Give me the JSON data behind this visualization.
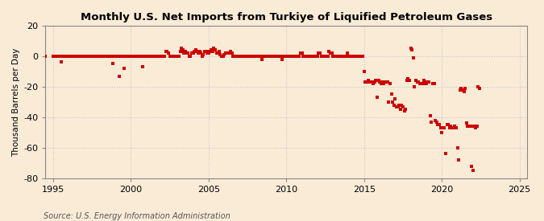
{
  "title": "Monthly U.S. Net Imports from Turkiye of Liquified Petroleum Gases",
  "ylabel": "Thousand Barrels per Day",
  "source": "Source: U.S. Energy Information Administration",
  "ylim": [
    -80,
    20
  ],
  "yticks": [
    -80,
    -60,
    -40,
    -20,
    0,
    20
  ],
  "xlim": [
    1994.5,
    2025.5
  ],
  "xticks": [
    1995,
    2000,
    2005,
    2010,
    2015,
    2020,
    2025
  ],
  "bg_color": "#faebd7",
  "plot_bg_color": "#faebd7",
  "marker_color": "#cc0000",
  "marker_size": 9,
  "grid_color": "#c8c8c8",
  "spine_color": "#888888",
  "data_points": [
    [
      1995.5,
      -4
    ],
    [
      1998.83,
      -5
    ],
    [
      1999.25,
      -13
    ],
    [
      1999.58,
      -8
    ],
    [
      2000.75,
      -7
    ],
    [
      2002.25,
      3
    ],
    [
      2002.33,
      3
    ],
    [
      2002.42,
      2
    ],
    [
      2003.17,
      3
    ],
    [
      2003.25,
      5
    ],
    [
      2003.33,
      4
    ],
    [
      2003.42,
      2
    ],
    [
      2003.5,
      3
    ],
    [
      2003.58,
      2
    ],
    [
      2003.67,
      2
    ],
    [
      2003.92,
      2
    ],
    [
      2004.0,
      2
    ],
    [
      2004.08,
      3
    ],
    [
      2004.17,
      4
    ],
    [
      2004.25,
      3
    ],
    [
      2004.33,
      2
    ],
    [
      2004.42,
      3
    ],
    [
      2004.5,
      2
    ],
    [
      2004.67,
      1
    ],
    [
      2004.75,
      3
    ],
    [
      2004.83,
      3
    ],
    [
      2004.92,
      2
    ],
    [
      2005.0,
      2
    ],
    [
      2005.08,
      3
    ],
    [
      2005.17,
      4
    ],
    [
      2005.25,
      3
    ],
    [
      2005.33,
      5
    ],
    [
      2005.42,
      4
    ],
    [
      2005.5,
      2
    ],
    [
      2005.58,
      2
    ],
    [
      2005.67,
      3
    ],
    [
      2005.75,
      1
    ],
    [
      2006.0,
      1
    ],
    [
      2006.08,
      2
    ],
    [
      2006.17,
      2
    ],
    [
      2006.25,
      2
    ],
    [
      2006.33,
      2
    ],
    [
      2006.42,
      3
    ],
    [
      2006.5,
      2
    ],
    [
      2008.42,
      -2
    ],
    [
      2009.75,
      -2
    ],
    [
      2010.92,
      2
    ],
    [
      2011.0,
      2
    ],
    [
      2012.08,
      2
    ],
    [
      2012.17,
      2
    ],
    [
      2012.75,
      3
    ],
    [
      2012.83,
      2
    ],
    [
      2012.92,
      2
    ],
    [
      2013.92,
      2
    ],
    [
      2015.0,
      -10
    ],
    [
      2015.08,
      -17
    ],
    [
      2015.17,
      -17
    ],
    [
      2015.25,
      -16
    ],
    [
      2015.33,
      -17
    ],
    [
      2015.42,
      -17
    ],
    [
      2015.5,
      -17
    ],
    [
      2015.58,
      -18
    ],
    [
      2015.67,
      -17
    ],
    [
      2015.75,
      -16
    ],
    [
      2015.83,
      -27
    ],
    [
      2015.92,
      -16
    ],
    [
      2016.0,
      -17
    ],
    [
      2016.08,
      -18
    ],
    [
      2016.17,
      -17
    ],
    [
      2016.25,
      -18
    ],
    [
      2016.33,
      -17
    ],
    [
      2016.42,
      -17
    ],
    [
      2016.5,
      -17
    ],
    [
      2016.58,
      -30
    ],
    [
      2016.67,
      -18
    ],
    [
      2016.75,
      -25
    ],
    [
      2016.83,
      -30
    ],
    [
      2016.92,
      -32
    ],
    [
      2017.0,
      -28
    ],
    [
      2017.08,
      -33
    ],
    [
      2017.17,
      -33
    ],
    [
      2017.25,
      -32
    ],
    [
      2017.33,
      -35
    ],
    [
      2017.42,
      -32
    ],
    [
      2017.5,
      -33
    ],
    [
      2017.58,
      -36
    ],
    [
      2017.67,
      -35
    ],
    [
      2017.75,
      -16
    ],
    [
      2017.83,
      -15
    ],
    [
      2017.92,
      -16
    ],
    [
      2018.0,
      5
    ],
    [
      2018.08,
      4
    ],
    [
      2018.17,
      -1
    ],
    [
      2018.25,
      -20
    ],
    [
      2018.33,
      -16
    ],
    [
      2018.42,
      -17
    ],
    [
      2018.5,
      -17
    ],
    [
      2018.58,
      -18
    ],
    [
      2018.67,
      -18
    ],
    [
      2018.75,
      -18
    ],
    [
      2018.83,
      -16
    ],
    [
      2018.92,
      -18
    ],
    [
      2019.0,
      -18
    ],
    [
      2019.08,
      -17
    ],
    [
      2019.17,
      -17
    ],
    [
      2019.25,
      -39
    ],
    [
      2019.33,
      -43
    ],
    [
      2019.42,
      -18
    ],
    [
      2019.5,
      -18
    ],
    [
      2019.58,
      -42
    ],
    [
      2019.67,
      -43
    ],
    [
      2019.75,
      -45
    ],
    [
      2019.83,
      -45
    ],
    [
      2019.92,
      -47
    ],
    [
      2020.0,
      -50
    ],
    [
      2020.08,
      -47
    ],
    [
      2020.17,
      -47
    ],
    [
      2020.25,
      -64
    ],
    [
      2020.33,
      -45
    ],
    [
      2020.42,
      -45
    ],
    [
      2020.5,
      -47
    ],
    [
      2020.58,
      -46
    ],
    [
      2020.67,
      -47
    ],
    [
      2020.75,
      -47
    ],
    [
      2020.83,
      -46
    ],
    [
      2020.92,
      -47
    ],
    [
      2021.0,
      -60
    ],
    [
      2021.08,
      -68
    ],
    [
      2021.17,
      -22
    ],
    [
      2021.25,
      -21
    ],
    [
      2021.33,
      -22
    ],
    [
      2021.42,
      -23
    ],
    [
      2021.5,
      -21
    ],
    [
      2021.58,
      -44
    ],
    [
      2021.67,
      -46
    ],
    [
      2021.75,
      -46
    ],
    [
      2021.83,
      -46
    ],
    [
      2021.92,
      -72
    ],
    [
      2022.0,
      -75
    ],
    [
      2022.08,
      -46
    ],
    [
      2022.17,
      -47
    ],
    [
      2022.25,
      -46
    ],
    [
      2022.33,
      -20
    ],
    [
      2022.42,
      -21
    ]
  ],
  "zero_line_points": [
    [
      1994.5,
      0
    ],
    [
      1995.0,
      0
    ],
    [
      1995.08,
      0
    ],
    [
      1995.17,
      0
    ],
    [
      1995.25,
      0
    ],
    [
      1995.33,
      0
    ],
    [
      1995.42,
      0
    ],
    [
      1995.58,
      0
    ],
    [
      1995.75,
      0
    ],
    [
      1995.83,
      0
    ],
    [
      1995.92,
      0
    ],
    [
      1996.0,
      0
    ],
    [
      1996.08,
      0
    ],
    [
      1996.17,
      0
    ],
    [
      1996.25,
      0
    ],
    [
      1996.33,
      0
    ],
    [
      1996.42,
      0
    ],
    [
      1996.5,
      0
    ],
    [
      1996.58,
      0
    ],
    [
      1996.67,
      0
    ],
    [
      1996.75,
      0
    ],
    [
      1996.83,
      0
    ],
    [
      1996.92,
      0
    ],
    [
      1997.0,
      0
    ],
    [
      1997.08,
      0
    ],
    [
      1997.17,
      0
    ],
    [
      1997.25,
      0
    ],
    [
      1997.33,
      0
    ],
    [
      1997.42,
      0
    ],
    [
      1997.5,
      0
    ],
    [
      1997.58,
      0
    ],
    [
      1997.67,
      0
    ],
    [
      1997.75,
      0
    ],
    [
      1997.83,
      0
    ],
    [
      1997.92,
      0
    ],
    [
      1998.0,
      0
    ],
    [
      1998.08,
      0
    ],
    [
      1998.17,
      0
    ],
    [
      1998.25,
      0
    ],
    [
      1998.33,
      0
    ],
    [
      1998.42,
      0
    ],
    [
      1998.5,
      0
    ],
    [
      1998.58,
      0
    ],
    [
      1998.67,
      0
    ],
    [
      1998.75,
      0
    ],
    [
      1998.92,
      0
    ],
    [
      1999.0,
      0
    ],
    [
      1999.08,
      0
    ],
    [
      1999.17,
      0
    ],
    [
      1999.33,
      0
    ],
    [
      1999.42,
      0
    ],
    [
      1999.5,
      0
    ],
    [
      1999.67,
      0
    ],
    [
      1999.75,
      0
    ],
    [
      1999.83,
      0
    ],
    [
      1999.92,
      0
    ],
    [
      2000.0,
      0
    ],
    [
      2000.08,
      0
    ],
    [
      2000.17,
      0
    ],
    [
      2000.25,
      0
    ],
    [
      2000.33,
      0
    ],
    [
      2000.42,
      0
    ],
    [
      2000.5,
      0
    ],
    [
      2000.58,
      0
    ],
    [
      2000.67,
      0
    ],
    [
      2000.83,
      0
    ],
    [
      2000.92,
      0
    ],
    [
      2001.0,
      0
    ],
    [
      2001.08,
      0
    ],
    [
      2001.17,
      0
    ],
    [
      2001.25,
      0
    ],
    [
      2001.33,
      0
    ],
    [
      2001.42,
      0
    ],
    [
      2001.5,
      0
    ],
    [
      2001.58,
      0
    ],
    [
      2001.67,
      0
    ],
    [
      2001.75,
      0
    ],
    [
      2001.83,
      0
    ],
    [
      2001.92,
      0
    ],
    [
      2002.0,
      0
    ],
    [
      2002.08,
      0
    ],
    [
      2002.17,
      0
    ],
    [
      2002.5,
      0
    ],
    [
      2002.58,
      0
    ],
    [
      2002.67,
      0
    ],
    [
      2002.75,
      0
    ],
    [
      2002.83,
      0
    ],
    [
      2002.92,
      0
    ],
    [
      2003.0,
      0
    ],
    [
      2003.08,
      0
    ],
    [
      2003.75,
      0
    ],
    [
      2003.83,
      0
    ],
    [
      2004.58,
      0
    ],
    [
      2005.83,
      0
    ],
    [
      2005.92,
      0
    ],
    [
      2006.58,
      0
    ],
    [
      2006.67,
      0
    ],
    [
      2006.75,
      0
    ],
    [
      2006.83,
      0
    ],
    [
      2006.92,
      0
    ],
    [
      2007.0,
      0
    ],
    [
      2007.08,
      0
    ],
    [
      2007.17,
      0
    ],
    [
      2007.25,
      0
    ],
    [
      2007.33,
      0
    ],
    [
      2007.42,
      0
    ],
    [
      2007.5,
      0
    ],
    [
      2007.58,
      0
    ],
    [
      2007.67,
      0
    ],
    [
      2007.75,
      0
    ],
    [
      2007.83,
      0
    ],
    [
      2007.92,
      0
    ],
    [
      2008.0,
      0
    ],
    [
      2008.08,
      0
    ],
    [
      2008.17,
      0
    ],
    [
      2008.25,
      0
    ],
    [
      2008.33,
      0
    ],
    [
      2008.5,
      0
    ],
    [
      2008.58,
      0
    ],
    [
      2008.67,
      0
    ],
    [
      2008.75,
      0
    ],
    [
      2008.83,
      0
    ],
    [
      2008.92,
      0
    ],
    [
      2009.0,
      0
    ],
    [
      2009.08,
      0
    ],
    [
      2009.17,
      0
    ],
    [
      2009.25,
      0
    ],
    [
      2009.33,
      0
    ],
    [
      2009.42,
      0
    ],
    [
      2009.5,
      0
    ],
    [
      2009.58,
      0
    ],
    [
      2009.67,
      0
    ],
    [
      2009.83,
      0
    ],
    [
      2009.92,
      0
    ],
    [
      2010.0,
      0
    ],
    [
      2010.08,
      0
    ],
    [
      2010.17,
      0
    ],
    [
      2010.25,
      0
    ],
    [
      2010.33,
      0
    ],
    [
      2010.42,
      0
    ],
    [
      2010.5,
      0
    ],
    [
      2010.58,
      0
    ],
    [
      2010.67,
      0
    ],
    [
      2010.75,
      0
    ],
    [
      2010.83,
      0
    ],
    [
      2011.08,
      0
    ],
    [
      2011.17,
      0
    ],
    [
      2011.25,
      0
    ],
    [
      2011.33,
      0
    ],
    [
      2011.42,
      0
    ],
    [
      2011.5,
      0
    ],
    [
      2011.58,
      0
    ],
    [
      2011.67,
      0
    ],
    [
      2011.75,
      0
    ],
    [
      2011.83,
      0
    ],
    [
      2011.92,
      0
    ],
    [
      2012.0,
      0
    ],
    [
      2012.25,
      0
    ],
    [
      2012.33,
      0
    ],
    [
      2012.42,
      0
    ],
    [
      2012.5,
      0
    ],
    [
      2012.58,
      0
    ],
    [
      2012.67,
      0
    ],
    [
      2013.0,
      0
    ],
    [
      2013.08,
      0
    ],
    [
      2013.17,
      0
    ],
    [
      2013.25,
      0
    ],
    [
      2013.33,
      0
    ],
    [
      2013.42,
      0
    ],
    [
      2013.5,
      0
    ],
    [
      2013.58,
      0
    ],
    [
      2013.67,
      0
    ],
    [
      2013.75,
      0
    ],
    [
      2013.83,
      0
    ],
    [
      2014.0,
      0
    ],
    [
      2014.08,
      0
    ],
    [
      2014.17,
      0
    ],
    [
      2014.25,
      0
    ],
    [
      2014.33,
      0
    ],
    [
      2014.42,
      0
    ],
    [
      2014.5,
      0
    ],
    [
      2014.58,
      0
    ],
    [
      2014.67,
      0
    ],
    [
      2014.75,
      0
    ],
    [
      2014.83,
      0
    ],
    [
      2014.92,
      0
    ]
  ]
}
